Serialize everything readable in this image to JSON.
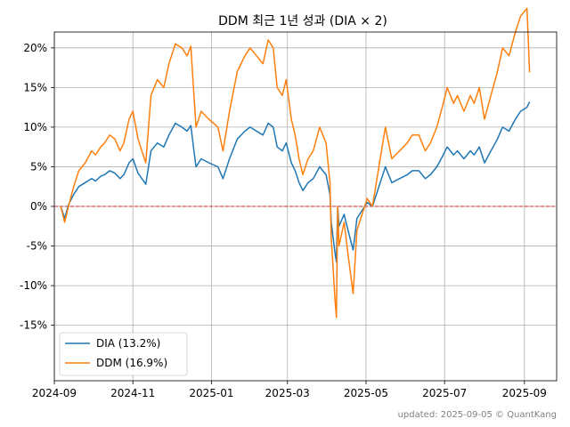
{
  "chart_data": {
    "type": "line",
    "title": "DDM 최근 1년 성과 (DIA × 2)",
    "xlabel": "",
    "ylabel": "",
    "x_ticks": [
      "2024-09",
      "2024-11",
      "2025-01",
      "2025-03",
      "2025-05",
      "2025-07",
      "2025-09"
    ],
    "y_ticks": [
      "-15%",
      "-10%",
      "-5%",
      "0%",
      "5%",
      "10%",
      "15%",
      "20%"
    ],
    "ylim": [
      -22,
      22
    ],
    "xlim": [
      "2024-09-01",
      "2025-09-26"
    ],
    "grid": true,
    "reference_line": {
      "y": 0,
      "color": "#d62728",
      "style": "dashed"
    },
    "legend_position": "lower-left",
    "series": [
      {
        "name": "DIA (13.2%)",
        "color": "#1f77b4",
        "points": [
          [
            "2024-09-06",
            0
          ],
          [
            "2024-09-09",
            -1.5
          ],
          [
            "2024-09-12",
            0.2
          ],
          [
            "2024-09-16",
            1.5
          ],
          [
            "2024-09-20",
            2.5
          ],
          [
            "2024-09-25",
            3.0
          ],
          [
            "2024-09-30",
            3.5
          ],
          [
            "2024-10-03",
            3.2
          ],
          [
            "2024-10-07",
            3.8
          ],
          [
            "2024-10-10",
            4.0
          ],
          [
            "2024-10-14",
            4.5
          ],
          [
            "2024-10-18",
            4.2
          ],
          [
            "2024-10-22",
            3.5
          ],
          [
            "2024-10-25",
            4.0
          ],
          [
            "2024-10-29",
            5.5
          ],
          [
            "2024-11-01",
            6.0
          ],
          [
            "2024-11-05",
            4.2
          ],
          [
            "2024-11-08",
            3.5
          ],
          [
            "2024-11-11",
            2.8
          ],
          [
            "2024-11-15",
            7.0
          ],
          [
            "2024-11-20",
            8.0
          ],
          [
            "2024-11-25",
            7.5
          ],
          [
            "2024-11-29",
            9.0
          ],
          [
            "2024-12-04",
            10.5
          ],
          [
            "2024-12-09",
            10.0
          ],
          [
            "2024-12-13",
            9.5
          ],
          [
            "2024-12-16",
            10.2
          ],
          [
            "2024-12-18",
            7.5
          ],
          [
            "2024-12-20",
            5.0
          ],
          [
            "2024-12-24",
            6.0
          ],
          [
            "2024-12-30",
            5.5
          ],
          [
            "2025-01-06",
            5.0
          ],
          [
            "2025-01-10",
            3.5
          ],
          [
            "2025-01-15",
            6.0
          ],
          [
            "2025-01-21",
            8.5
          ],
          [
            "2025-01-27",
            9.5
          ],
          [
            "2025-01-31",
            10.0
          ],
          [
            "2025-02-05",
            9.5
          ],
          [
            "2025-02-10",
            9.0
          ],
          [
            "2025-02-14",
            10.5
          ],
          [
            "2025-02-18",
            10.0
          ],
          [
            "2025-02-21",
            7.5
          ],
          [
            "2025-02-25",
            7.0
          ],
          [
            "2025-02-28",
            8.0
          ],
          [
            "2025-03-04",
            5.5
          ],
          [
            "2025-03-07",
            4.5
          ],
          [
            "2025-03-10",
            3.0
          ],
          [
            "2025-03-13",
            2.0
          ],
          [
            "2025-03-17",
            3.0
          ],
          [
            "2025-03-21",
            3.5
          ],
          [
            "2025-03-26",
            5.0
          ],
          [
            "2025-03-31",
            4.0
          ],
          [
            "2025-04-03",
            1.5
          ],
          [
            "2025-04-04",
            -2.0
          ],
          [
            "2025-04-07",
            -6.0
          ],
          [
            "2025-04-08",
            -7.0
          ],
          [
            "2025-04-09",
            0.0
          ],
          [
            "2025-04-10",
            -2.5
          ],
          [
            "2025-04-14",
            -1.0
          ],
          [
            "2025-04-17",
            -3.0
          ],
          [
            "2025-04-21",
            -5.5
          ],
          [
            "2025-04-24",
            -1.5
          ],
          [
            "2025-04-28",
            -0.5
          ],
          [
            "2025-05-02",
            0.5
          ],
          [
            "2025-05-06",
            0.0
          ],
          [
            "2025-05-12",
            3.0
          ],
          [
            "2025-05-16",
            5.0
          ],
          [
            "2025-05-21",
            3.0
          ],
          [
            "2025-05-27",
            3.5
          ],
          [
            "2025-06-02",
            4.0
          ],
          [
            "2025-06-06",
            4.5
          ],
          [
            "2025-06-11",
            4.5
          ],
          [
            "2025-06-16",
            3.5
          ],
          [
            "2025-06-20",
            4.0
          ],
          [
            "2025-06-25",
            5.0
          ],
          [
            "2025-06-30",
            6.5
          ],
          [
            "2025-07-03",
            7.5
          ],
          [
            "2025-07-08",
            6.5
          ],
          [
            "2025-07-11",
            7.0
          ],
          [
            "2025-07-16",
            6.0
          ],
          [
            "2025-07-21",
            7.0
          ],
          [
            "2025-07-24",
            6.5
          ],
          [
            "2025-07-28",
            7.5
          ],
          [
            "2025-08-01",
            5.5
          ],
          [
            "2025-08-06",
            7.0
          ],
          [
            "2025-08-11",
            8.5
          ],
          [
            "2025-08-15",
            10.0
          ],
          [
            "2025-08-20",
            9.5
          ],
          [
            "2025-08-25",
            11.0
          ],
          [
            "2025-08-29",
            12.0
          ],
          [
            "2025-09-03",
            12.5
          ],
          [
            "2025-09-05",
            13.2
          ]
        ]
      },
      {
        "name": "DDM (16.9%)",
        "color": "#ff7f0e",
        "points": [
          [
            "2024-09-06",
            0
          ],
          [
            "2024-09-09",
            -2.0
          ],
          [
            "2024-09-12",
            0.0
          ],
          [
            "2024-09-16",
            2.5
          ],
          [
            "2024-09-20",
            4.5
          ],
          [
            "2024-09-25",
            5.5
          ],
          [
            "2024-09-30",
            7.0
          ],
          [
            "2024-10-03",
            6.5
          ],
          [
            "2024-10-07",
            7.5
          ],
          [
            "2024-10-10",
            8.0
          ],
          [
            "2024-10-14",
            9.0
          ],
          [
            "2024-10-18",
            8.5
          ],
          [
            "2024-10-22",
            7.0
          ],
          [
            "2024-10-25",
            8.0
          ],
          [
            "2024-10-29",
            11.0
          ],
          [
            "2024-11-01",
            12.0
          ],
          [
            "2024-11-05",
            8.5
          ],
          [
            "2024-11-08",
            7.0
          ],
          [
            "2024-11-11",
            5.5
          ],
          [
            "2024-11-15",
            14.0
          ],
          [
            "2024-11-20",
            16.0
          ],
          [
            "2024-11-25",
            15.0
          ],
          [
            "2024-11-29",
            18.0
          ],
          [
            "2024-12-04",
            20.5
          ],
          [
            "2024-12-09",
            20.0
          ],
          [
            "2024-12-13",
            19.0
          ],
          [
            "2024-12-16",
            20.2
          ],
          [
            "2024-12-18",
            15.0
          ],
          [
            "2024-12-20",
            10.0
          ],
          [
            "2024-12-24",
            12.0
          ],
          [
            "2024-12-30",
            11.0
          ],
          [
            "2025-01-06",
            10.0
          ],
          [
            "2025-01-10",
            7.0
          ],
          [
            "2025-01-15",
            12.0
          ],
          [
            "2025-01-21",
            17.0
          ],
          [
            "2025-01-27",
            19.0
          ],
          [
            "2025-01-31",
            20.0
          ],
          [
            "2025-02-05",
            19.0
          ],
          [
            "2025-02-10",
            18.0
          ],
          [
            "2025-02-14",
            21.0
          ],
          [
            "2025-02-18",
            20.0
          ],
          [
            "2025-02-21",
            15.0
          ],
          [
            "2025-02-25",
            14.0
          ],
          [
            "2025-02-28",
            16.0
          ],
          [
            "2025-03-04",
            11.0
          ],
          [
            "2025-03-07",
            9.0
          ],
          [
            "2025-03-10",
            6.0
          ],
          [
            "2025-03-13",
            4.0
          ],
          [
            "2025-03-17",
            6.0
          ],
          [
            "2025-03-21",
            7.0
          ],
          [
            "2025-03-26",
            10.0
          ],
          [
            "2025-03-31",
            8.0
          ],
          [
            "2025-04-03",
            3.0
          ],
          [
            "2025-04-04",
            -4.0
          ],
          [
            "2025-04-07",
            -12.0
          ],
          [
            "2025-04-08",
            -14.0
          ],
          [
            "2025-04-09",
            0.0
          ],
          [
            "2025-04-10",
            -5.0
          ],
          [
            "2025-04-14",
            -2.0
          ],
          [
            "2025-04-17",
            -6.0
          ],
          [
            "2025-04-21",
            -11.0
          ],
          [
            "2025-04-24",
            -3.0
          ],
          [
            "2025-04-28",
            -1.0
          ],
          [
            "2025-05-02",
            1.0
          ],
          [
            "2025-05-06",
            0.0
          ],
          [
            "2025-05-12",
            6.0
          ],
          [
            "2025-05-16",
            10.0
          ],
          [
            "2025-05-21",
            6.0
          ],
          [
            "2025-05-27",
            7.0
          ],
          [
            "2025-06-02",
            8.0
          ],
          [
            "2025-06-06",
            9.0
          ],
          [
            "2025-06-11",
            9.0
          ],
          [
            "2025-06-16",
            7.0
          ],
          [
            "2025-06-20",
            8.0
          ],
          [
            "2025-06-25",
            10.0
          ],
          [
            "2025-06-30",
            13.0
          ],
          [
            "2025-07-03",
            15.0
          ],
          [
            "2025-07-08",
            13.0
          ],
          [
            "2025-07-11",
            14.0
          ],
          [
            "2025-07-16",
            12.0
          ],
          [
            "2025-07-21",
            14.0
          ],
          [
            "2025-07-24",
            13.0
          ],
          [
            "2025-07-28",
            15.0
          ],
          [
            "2025-08-01",
            11.0
          ],
          [
            "2025-08-06",
            14.0
          ],
          [
            "2025-08-11",
            17.0
          ],
          [
            "2025-08-15",
            20.0
          ],
          [
            "2025-08-20",
            19.0
          ],
          [
            "2025-08-25",
            22.0
          ],
          [
            "2025-08-29",
            24.0
          ],
          [
            "2025-09-03",
            25.0
          ],
          [
            "2025-09-05",
            16.9
          ]
        ]
      }
    ]
  },
  "footer": "updated: 2025-09-05 © QuantKang"
}
